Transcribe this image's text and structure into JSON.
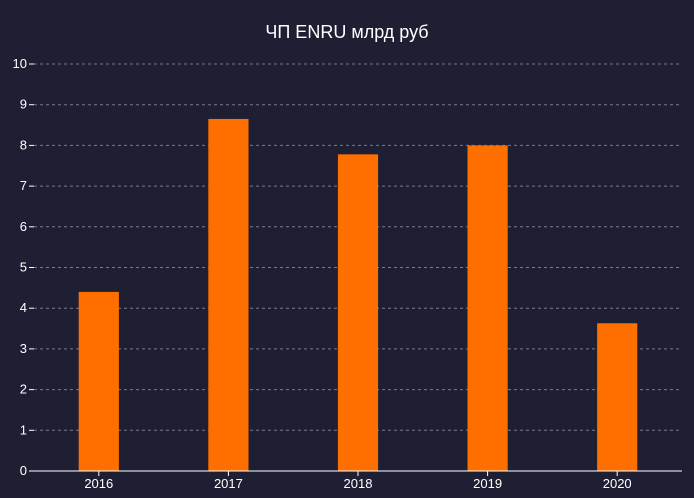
{
  "chart_data": {
    "type": "bar",
    "title": "ЧП ENRU млрд руб",
    "categories": [
      "2016",
      "2017",
      "2018",
      "2019",
      "2020"
    ],
    "values": [
      4.4,
      8.65,
      7.78,
      8.0,
      3.63
    ],
    "ylim": [
      0,
      10
    ],
    "yticks": [
      0,
      1,
      2,
      3,
      4,
      5,
      6,
      7,
      8,
      9,
      10
    ],
    "grid": true,
    "legend": "none",
    "colors": {
      "background": "#1f1f33",
      "bar": "#ff6f00",
      "text": "#ffffff",
      "grid": "#8a8a99"
    }
  }
}
